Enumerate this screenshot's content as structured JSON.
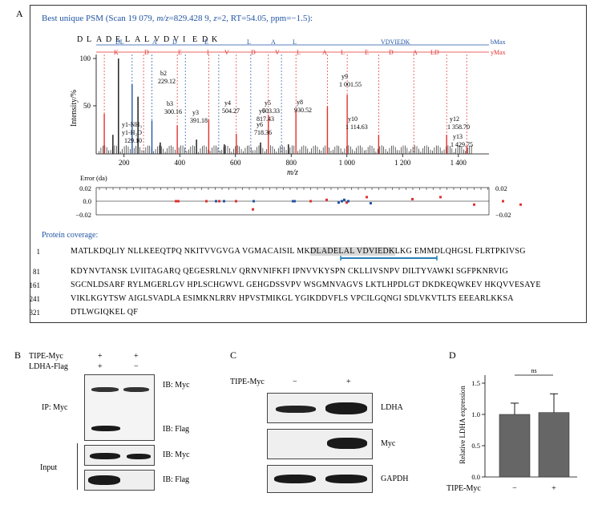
{
  "panelA": {
    "letter": "A",
    "title_prefix": "Best unique PSM (Scan 19 079, ",
    "title_mz": "m/z",
    "title_rest": "=829.428 9, ",
    "title_z": "z",
    "title_end": "=2, RT=54.05, ppm=−1.5):",
    "peptide_letters": [
      "D",
      "L",
      "A",
      "D",
      "E",
      "L",
      "A",
      "L",
      "V",
      "D",
      "V",
      "I",
      "E",
      "D",
      "K"
    ],
    "b_row_labels": [
      "DL",
      "A",
      "D",
      "E",
      "L",
      "A",
      "L",
      "VDVIEDK",
      "bMax"
    ],
    "y_row_labels": [
      "K",
      "D",
      "E",
      "I",
      "V",
      "D",
      "V",
      "L",
      "A",
      "L",
      "E",
      "D",
      "A",
      "LD",
      "yMax"
    ],
    "ylabel": "Intensity/%",
    "xlabel": "m/z",
    "y_ticks": [
      "100",
      "50"
    ],
    "x_ticks": [
      "200",
      "400",
      "600",
      "800",
      "1 000",
      "1 200",
      "1 400"
    ],
    "peak_labels": [
      {
        "text": "b2",
        "sub": "229.12"
      },
      {
        "text": "b3",
        "sub": "300.16"
      },
      {
        "text": "y3",
        "sub": "391.18"
      },
      {
        "text": "y4",
        "sub": "504.27"
      },
      {
        "text": "y5",
        "sub": "603.33"
      },
      {
        "text": "y6",
        "sub": "718.36"
      },
      {
        "text": "y7",
        "sub": "817.43"
      },
      {
        "text": "y8",
        "sub": "930.52"
      },
      {
        "text": "y9",
        "sub": "1 001.55"
      },
      {
        "text": "y10",
        "sub": "1 114.63"
      },
      {
        "text": "y12",
        "sub": "1 358.70"
      },
      {
        "text": "y13",
        "sub": "1 429.75"
      }
    ],
    "y1_labels": [
      "y1-NH₃",
      "y1-H₂O",
      "129.10"
    ],
    "error_label": "Error (da)",
    "error_left_ticks": [
      "0.02",
      "0.0",
      "−0.02"
    ],
    "error_right_ticks": [
      "0.02",
      "−0.02"
    ],
    "coverage_label": "Protein coverage:",
    "sequence_rows": [
      {
        "num": "1",
        "text": "MATLKDQLIY NLLKEEQTPQ NKITVVGVGA VGMACAISIL MK",
        "highlight": "DLADELAL VDVIEDK",
        "after": "LKG EMMDLQHGSL FLRTPKIVSG"
      },
      {
        "num": "81",
        "text": "KDYNVTANSK LVIITAGARQ QEGESRLNLV QRNVNIFKFI IPNVVKYSPN CKLLIVSNPV DILTYVAWKI SGFPKNRVIG",
        "highlight": "",
        "after": ""
      },
      {
        "num": "161",
        "text": "SGCNLDSARF RYLMGERLGV HPLSCHGWVL GEHGDSSVPV WSGMNVAGVS LKTLHPDLGT DKDKEQWKEV HKQVVESAYE",
        "highlight": "",
        "after": ""
      },
      {
        "num": "241",
        "text": "VIKLKGYTSW AIGLSVADLA ESIMKNLRRV HPVSTMIKGL YGIKDDVFLS VPCILGQNGI SDLVKVTLTS EEEARLKKSA",
        "highlight": "",
        "after": ""
      },
      {
        "num": "321",
        "text": "DTLWGIQKEL QF",
        "highlight": "",
        "after": ""
      }
    ]
  },
  "panelB": {
    "letter": "B",
    "row1_label": "TIPE-Myc",
    "row1_vals": [
      "+",
      "+"
    ],
    "row2_label": "LDHA-Flag",
    "row2_vals": [
      "+",
      "−"
    ],
    "ip_label": "IP: Myc",
    "input_label": "Input",
    "blot_labels": [
      "IB: Myc",
      "IB: Flag",
      "IB: Myc",
      "IB: Flag"
    ]
  },
  "panelC": {
    "letter": "C",
    "row_label": "TIPE-Myc",
    "row_vals": [
      "−",
      "+"
    ],
    "blot_labels": [
      "LDHA",
      "Myc",
      "GAPDH"
    ]
  },
  "panelD": {
    "letter": "D",
    "ylabel": "Relative LDHA expression",
    "y_ticks": [
      "1.5",
      "1.0",
      "0.5",
      "0.0"
    ],
    "sig": "ns",
    "x_label": "TIPE-Myc",
    "x_vals": [
      "−",
      "+"
    ],
    "chart_data": {
      "type": "bar",
      "categories": [
        "−",
        "+"
      ],
      "values": [
        1.0,
        1.03
      ],
      "errors": [
        0.18,
        0.3
      ],
      "ylabel": "Relative LDHA expression",
      "xlabel": "TIPE-Myc",
      "ylim": [
        0,
        1.5
      ],
      "bar_color": "#666666"
    }
  },
  "colors": {
    "blue": "#2255a4",
    "red": "#e0322f",
    "dark": "#111111"
  }
}
